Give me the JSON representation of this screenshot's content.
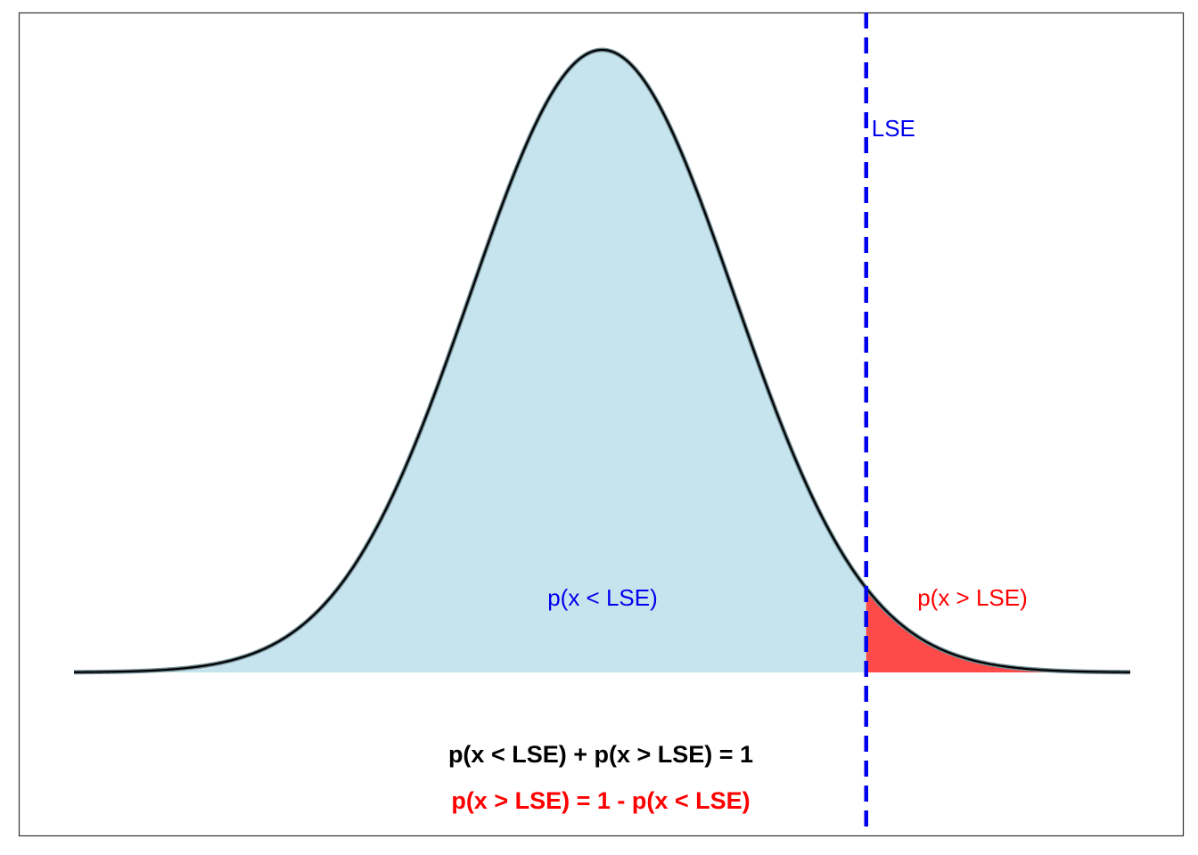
{
  "chart_data": {
    "type": "area",
    "distribution": "normal",
    "mean": 0,
    "sd": 1,
    "xlim": [
      -4,
      4
    ],
    "threshold": {
      "name": "LSE",
      "value": 2,
      "label": "LSE",
      "color": "#0000ee",
      "style": "dashed"
    },
    "regions": [
      {
        "name": "below",
        "range": [
          -4,
          2
        ],
        "label": "p(x < LSE)",
        "fill": "#c6e4ee",
        "label_color": "#0000ee"
      },
      {
        "name": "above",
        "range": [
          2,
          4
        ],
        "label": "p(x > LSE)",
        "fill": "#ff4a4a",
        "label_color": "#ff0000"
      }
    ],
    "annotations": [
      {
        "text": "p(x < LSE) + p(x > LSE) = 1",
        "color": "#000000"
      },
      {
        "text": "p(x > LSE) = 1 - p(x < LSE)",
        "color": "#ff0000"
      }
    ],
    "title": "",
    "xlabel": "",
    "ylabel": "",
    "grid": false,
    "axes_visible": false
  }
}
